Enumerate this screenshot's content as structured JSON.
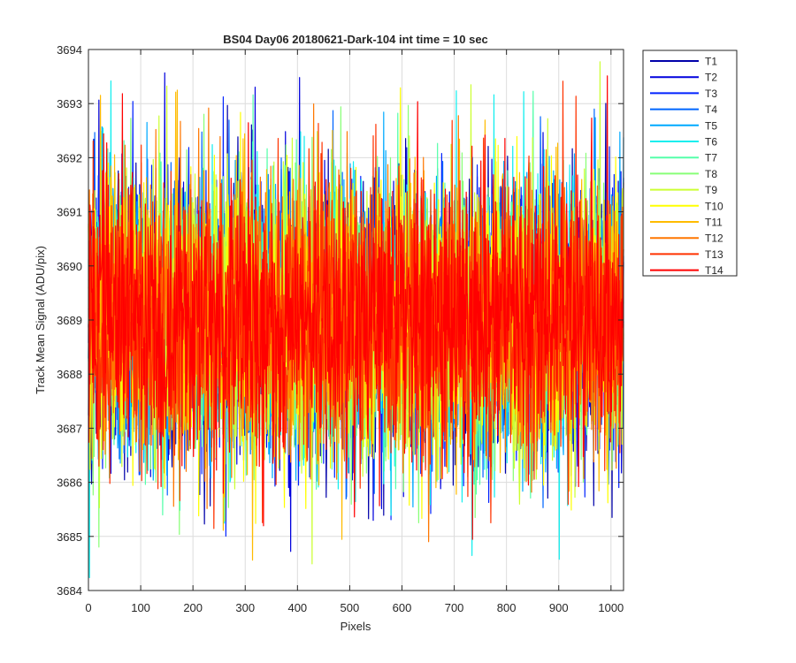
{
  "chart_data": {
    "type": "line",
    "title": "BS04 Day06 20180621-Dark-104 int time = 10 sec",
    "xlabel": "Pixels",
    "ylabel": "Track Mean Signal (ADU/pix)",
    "xlim": [
      0,
      1024
    ],
    "ylim": [
      3684,
      3694
    ],
    "xticks": [
      0,
      100,
      200,
      300,
      400,
      500,
      600,
      700,
      800,
      900,
      1000
    ],
    "yticks": [
      3684,
      3685,
      3686,
      3687,
      3688,
      3689,
      3690,
      3691,
      3692,
      3693,
      3694
    ],
    "grid": true,
    "legend_position": "outside-top-right",
    "noise_model": {
      "mean": 3689,
      "sigma": 1.3,
      "min": 3684.2,
      "max": 3693.8
    },
    "series": [
      {
        "name": "T1",
        "color": "#0000AA"
      },
      {
        "name": "T2",
        "color": "#0000DD"
      },
      {
        "name": "T3",
        "color": "#0022FF"
      },
      {
        "name": "T4",
        "color": "#0066FF"
      },
      {
        "name": "T5",
        "color": "#00AAFF"
      },
      {
        "name": "T6",
        "color": "#11EEEE"
      },
      {
        "name": "T7",
        "color": "#55FFAA"
      },
      {
        "name": "T8",
        "color": "#88FF77"
      },
      {
        "name": "T9",
        "color": "#CCFF33"
      },
      {
        "name": "T10",
        "color": "#FFFF00"
      },
      {
        "name": "T11",
        "color": "#FFBB00"
      },
      {
        "name": "T12",
        "color": "#FF7700"
      },
      {
        "name": "T13",
        "color": "#FF3300"
      },
      {
        "name": "T14",
        "color": "#FF0000"
      }
    ]
  }
}
